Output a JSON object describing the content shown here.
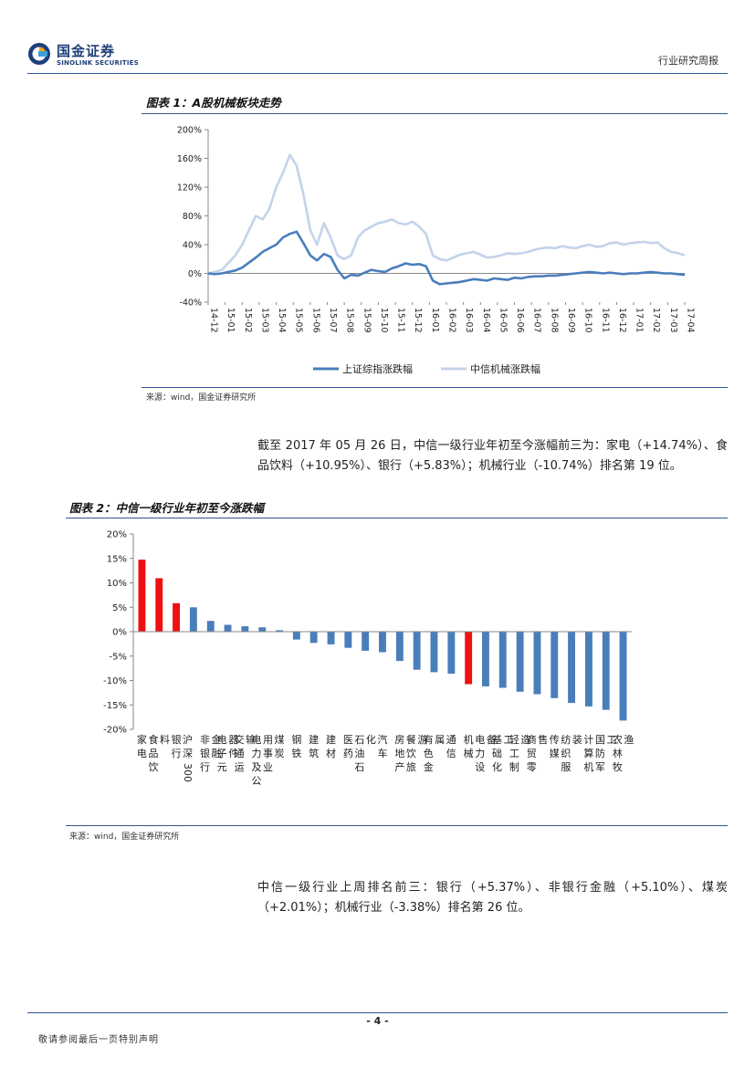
{
  "header": {
    "brand_cn": "国金证券",
    "brand_en": "SINOLINK SECURITIES",
    "report_type": "行业研究周报",
    "brand_color": "#1f3f7a",
    "accent_color": "#2f5597"
  },
  "figure1": {
    "title": "图表 1：A股机械板块走势",
    "source": "来源：wind，国金证券研究所"
  },
  "figure2": {
    "title": "图表 2：中信一级行业年初至今涨跌幅",
    "source": "来源：wind，国金证券研究所"
  },
  "paragraph1": "截至 2017 年 05 月 26 日，中信一级行业年初至今涨幅前三为：家电（+14.74%）、食品饮料（+10.95%）、银行（+5.83%）；机械行业（-10.74%）排名第 19 位。",
  "paragraph2": "中信一级行业上周排名前三：银行（+5.37%）、非银行金融（+5.10%）、煤炭（+2.01%）；机械行业（-3.38%）排名第 26 位。",
  "footer": {
    "page": "- 4 -",
    "disclaimer": "敬请参阅最后一页特别声明"
  },
  "chart_data": [
    {
      "type": "line",
      "title": "",
      "x_tick_labels": [
        "14-12",
        "15-01",
        "15-02",
        "15-03",
        "15-04",
        "15-05",
        "15-06",
        "15-07",
        "15-08",
        "15-09",
        "15-10",
        "15-11",
        "15-12",
        "16-01",
        "16-02",
        "16-03",
        "16-04",
        "16-05",
        "16-06",
        "16-07",
        "16-08",
        "16-09",
        "16-10",
        "16-11",
        "16-12",
        "17-01",
        "17-02",
        "17-03",
        "17-04"
      ],
      "ylim": [
        -40,
        200
      ],
      "y_ticks": [
        -40,
        0,
        40,
        80,
        120,
        160,
        200
      ],
      "y_unit": "%",
      "legend_position": "bottom-center",
      "series": [
        {
          "name": "上证综指涨跌幅",
          "color": "#4a7ebb",
          "values": [
            0,
            -1,
            0,
            2,
            4,
            8,
            15,
            22,
            30,
            35,
            40,
            50,
            55,
            58,
            42,
            25,
            18,
            27,
            23,
            5,
            -7,
            -2,
            -3,
            1,
            5,
            3,
            2,
            7,
            10,
            14,
            12,
            13,
            10,
            -10,
            -15,
            -14,
            -13,
            -12,
            -10,
            -8,
            -9,
            -10,
            -7,
            -8,
            -9,
            -6,
            -7,
            -5,
            -4,
            -4,
            -3,
            -3,
            -2,
            -1,
            0,
            1,
            2,
            1,
            0,
            1,
            0,
            -1,
            0,
            0,
            1,
            2,
            1,
            0,
            0,
            -1,
            -2
          ]
        },
        {
          "name": "中信机械涨跌幅",
          "color": "#c4d3ea",
          "values": [
            0,
            2,
            5,
            15,
            25,
            40,
            60,
            80,
            75,
            90,
            120,
            140,
            165,
            150,
            110,
            60,
            40,
            70,
            50,
            25,
            20,
            25,
            50,
            60,
            65,
            70,
            72,
            75,
            70,
            68,
            72,
            65,
            55,
            25,
            20,
            18,
            22,
            26,
            28,
            30,
            26,
            22,
            23,
            25,
            28,
            27,
            28,
            30,
            33,
            35,
            36,
            35,
            38,
            36,
            35,
            38,
            40,
            37,
            38,
            42,
            43,
            40,
            42,
            43,
            44,
            42,
            43,
            35,
            30,
            28,
            25
          ]
        }
      ]
    },
    {
      "type": "bar",
      "title": "",
      "ylim": [
        -20,
        20
      ],
      "y_ticks": [
        20,
        15,
        10,
        5,
        0,
        -5,
        -10,
        -15,
        -20
      ],
      "y_unit": "%",
      "highlight_color": "#ee1111",
      "normal_color": "#4a7ebb",
      "categories": [
        "家电",
        "食品饮料",
        "银行",
        "沪深300",
        "非银行金融",
        "电子元器件",
        "交通运输",
        "电力及公用事业",
        "煤炭",
        "钢铁",
        "建筑",
        "建材",
        "医药",
        "石油石化",
        "汽车",
        "房地产",
        "餐饮旅游",
        "有色金属",
        "通信",
        "机械",
        "电力设备",
        "基础化工",
        "轻工制造",
        "商贸零售",
        "传媒",
        "纺织服装",
        "计算机",
        "国防军工",
        "农林牧渔"
      ],
      "values": [
        14.74,
        10.95,
        5.83,
        5.0,
        2.2,
        1.4,
        1.1,
        0.9,
        0.3,
        -1.6,
        -2.3,
        -2.6,
        -3.3,
        -3.9,
        -4.2,
        -6.0,
        -7.8,
        -8.3,
        -8.6,
        -10.74,
        -11.2,
        -11.5,
        -12.3,
        -12.8,
        -13.6,
        -14.6,
        -15.3,
        -16.0,
        -18.2
      ],
      "highlight": [
        true,
        true,
        true,
        false,
        false,
        false,
        false,
        false,
        false,
        false,
        false,
        false,
        false,
        false,
        false,
        false,
        false,
        false,
        false,
        true,
        false,
        false,
        false,
        false,
        false,
        false,
        false,
        false,
        false
      ]
    }
  ]
}
